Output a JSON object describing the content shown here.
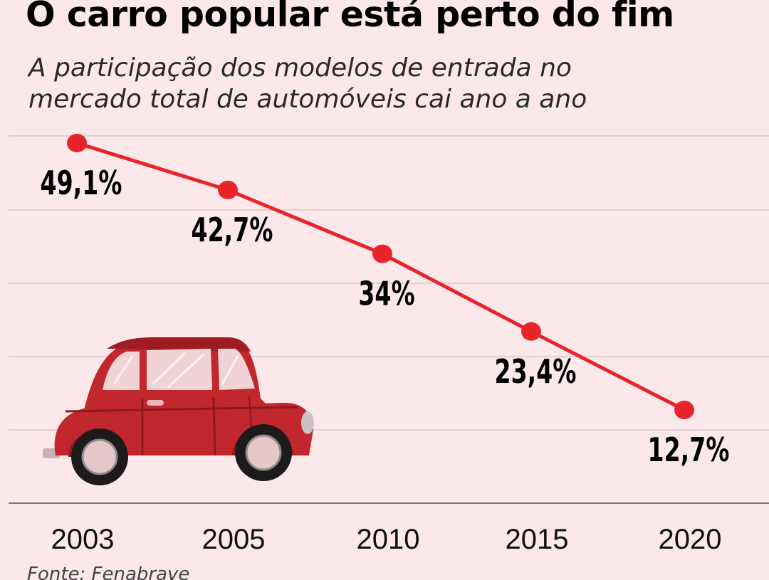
{
  "title": "O carro popular está perto do fim",
  "subtitle": "A participação dos modelos de entrada no mercado total de automóveis cai ano a ano",
  "source": "Fonte: Fenabrave",
  "colors": {
    "background": "#fce8ea",
    "line": "#e8232a",
    "grid": "#c9b9bb",
    "car_body": "#c1272d"
  },
  "illustration": "red-car-icon",
  "chart_data": {
    "type": "line",
    "categories": [
      "2003",
      "2005",
      "2010",
      "2015",
      "2020"
    ],
    "values": [
      49.1,
      42.7,
      34,
      23.4,
      12.7
    ],
    "data_labels": [
      "49,1%",
      "42,7%",
      "34%",
      "23,4%",
      "12,7%"
    ],
    "title": "",
    "xlabel": "",
    "ylabel": "",
    "grid": true,
    "y_axis_labels_shown": false
  }
}
